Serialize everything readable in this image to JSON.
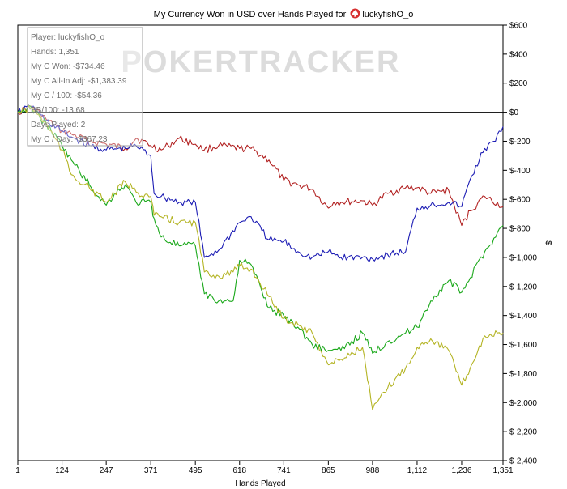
{
  "title": {
    "prefix": "My Currency Won in USD over Hands Played for",
    "player": "luckyfishO_o"
  },
  "watermark": "POKERTRACKER",
  "stats_box": [
    "Player: luckyfishO_o",
    "Hands: 1,351",
    "My C Won: -$734.46",
    "My C All-In Adj: -$1,383.39",
    "My C / 100: -$54.36",
    "BB/100: -13.68",
    "Days Played: 2",
    "My C / Day: -$367.23"
  ],
  "chart_data": {
    "type": "line",
    "title": "My Currency Won in USD over Hands Played for luckyfishO_o",
    "xlabel": "Hands Played",
    "ylabel": "$",
    "xlim": [
      1,
      1351
    ],
    "ylim": [
      -2400,
      600
    ],
    "x_ticks": [
      1,
      124,
      247,
      371,
      495,
      618,
      741,
      865,
      988,
      1112,
      1236,
      1351
    ],
    "x_tick_labels": [
      "1",
      "124",
      "247",
      "371",
      "495",
      "618",
      "741",
      "865",
      "988",
      "1,112",
      "1,236",
      "1,351"
    ],
    "y_ticks": [
      600,
      400,
      200,
      0,
      -200,
      -400,
      -600,
      -800,
      -1000,
      -1200,
      -1400,
      -1600,
      -1800,
      -2000,
      -2200,
      -2400
    ],
    "y_tick_labels": [
      "$600",
      "$400",
      "$200",
      "$0",
      "$-200",
      "$-400",
      "$-600",
      "$-800",
      "$-1,000",
      "$-1,200",
      "$-1,400",
      "$-1,600",
      "$-1,800",
      "$-2,000",
      "$-2,200",
      "$-2,400"
    ],
    "y_axis_position": "right",
    "grid": false,
    "zero_line": true,
    "colors": {
      "red": "#b22222",
      "blue": "#1c1cb4",
      "green": "#1aa81a",
      "olive": "#b4b424"
    },
    "series": [
      {
        "color": "red",
        "x": [
          1,
          40,
          80,
          124,
          150,
          200,
          247,
          300,
          330,
          371,
          400,
          420,
          450,
          495,
          520,
          560,
          618,
          650,
          700,
          741,
          780,
          820,
          865,
          880,
          900,
          960,
          988,
          1030,
          1080,
          1112,
          1150,
          1200,
          1236,
          1260,
          1300,
          1351
        ],
        "y": [
          0,
          40,
          -50,
          -130,
          -150,
          -200,
          -220,
          -250,
          -180,
          -230,
          -260,
          -230,
          -180,
          -220,
          -260,
          -230,
          -250,
          -250,
          -330,
          -470,
          -500,
          -530,
          -660,
          -620,
          -620,
          -610,
          -640,
          -560,
          -520,
          -520,
          -560,
          -540,
          -780,
          -680,
          -580,
          -650
        ]
      },
      {
        "color": "blue",
        "x": [
          1,
          40,
          80,
          124,
          150,
          200,
          247,
          300,
          330,
          371,
          380,
          400,
          450,
          495,
          520,
          560,
          618,
          650,
          700,
          741,
          780,
          820,
          865,
          900,
          960,
          988,
          1030,
          1080,
          1112,
          1150,
          1200,
          1236,
          1260,
          1300,
          1330,
          1351
        ],
        "y": [
          0,
          40,
          -60,
          -130,
          -170,
          -230,
          -260,
          -250,
          -230,
          -300,
          -560,
          -580,
          -620,
          -620,
          -1000,
          -950,
          -760,
          -720,
          -880,
          -890,
          -960,
          -1000,
          -960,
          -1000,
          -1000,
          -1010,
          -980,
          -960,
          -660,
          -640,
          -620,
          -650,
          -460,
          -250,
          -200,
          -100
        ]
      },
      {
        "color": "green",
        "x": [
          1,
          40,
          80,
          124,
          150,
          200,
          247,
          270,
          300,
          330,
          371,
          380,
          400,
          450,
          495,
          520,
          560,
          600,
          618,
          650,
          700,
          741,
          780,
          820,
          865,
          900,
          960,
          988,
          1030,
          1080,
          1112,
          1150,
          1200,
          1236,
          1260,
          1300,
          1351
        ],
        "y": [
          0,
          30,
          -80,
          -230,
          -330,
          -500,
          -640,
          -560,
          -500,
          -620,
          -620,
          -730,
          -860,
          -920,
          -920,
          -1250,
          -1300,
          -1300,
          -1020,
          -1050,
          -1350,
          -1400,
          -1480,
          -1600,
          -1640,
          -1640,
          -1520,
          -1660,
          -1580,
          -1520,
          -1480,
          -1300,
          -1160,
          -1240,
          -1140,
          -960,
          -780
        ]
      },
      {
        "color": "olive",
        "x": [
          1,
          40,
          80,
          124,
          150,
          200,
          247,
          270,
          300,
          330,
          371,
          380,
          400,
          450,
          495,
          520,
          560,
          600,
          618,
          650,
          700,
          741,
          780,
          820,
          865,
          900,
          960,
          988,
          1030,
          1080,
          1112,
          1150,
          1200,
          1236,
          1260,
          1300,
          1351
        ],
        "y": [
          0,
          30,
          -80,
          -260,
          -430,
          -520,
          -620,
          -560,
          -480,
          -550,
          -580,
          -710,
          -720,
          -760,
          -760,
          -1100,
          -1130,
          -1100,
          -1060,
          -1080,
          -1270,
          -1420,
          -1460,
          -1520,
          -1740,
          -1700,
          -1620,
          -2050,
          -1900,
          -1760,
          -1620,
          -1560,
          -1640,
          -1880,
          -1760,
          -1540,
          -1520
        ]
      }
    ]
  }
}
